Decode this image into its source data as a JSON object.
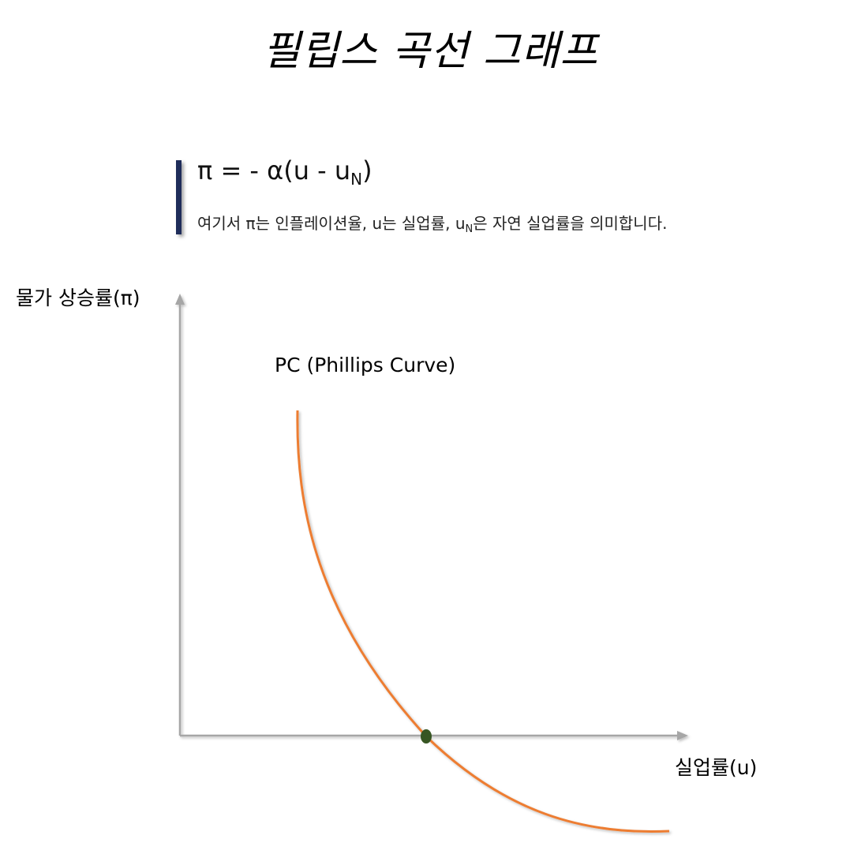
{
  "title": "필립스 곡선 그래프",
  "formula": {
    "main_prefix": "π = - α(u - u",
    "main_sub": "N",
    "main_suffix": ")",
    "note_prefix": "여기서 π는 인플레이션율, u는 실업률, u",
    "note_sub": "N",
    "note_suffix": "은 자연 실업률을 의미합니다.",
    "bar_color": "#1f2d5a"
  },
  "axes": {
    "y_label": "물가 상승률(π)",
    "x_label": "실업률(u)",
    "axis_color": "#a6a6a6"
  },
  "curve": {
    "label": "PC (Phillips Curve)",
    "color": "#ed7d31",
    "shape": "downward-sloping convex"
  },
  "natural_rate_point": {
    "color": "#375623",
    "description_on_chart": ""
  }
}
